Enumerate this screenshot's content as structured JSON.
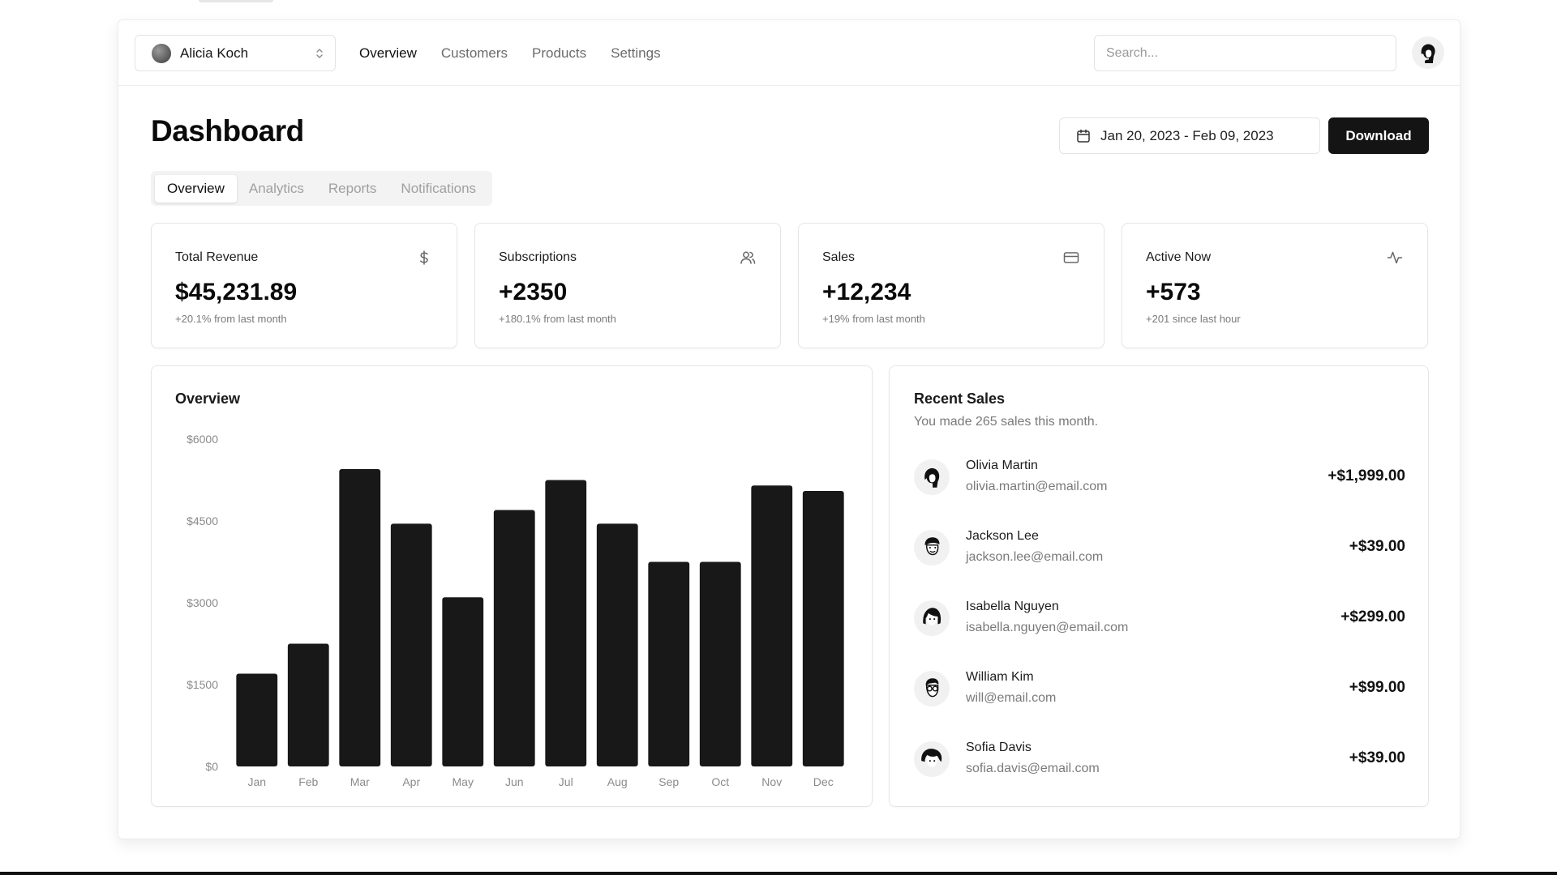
{
  "team_switcher": {
    "name": "Alicia Koch"
  },
  "nav": {
    "links": [
      "Overview",
      "Customers",
      "Products",
      "Settings"
    ],
    "active": "Overview"
  },
  "search": {
    "placeholder": "Search..."
  },
  "page": {
    "title": "Dashboard"
  },
  "date_range": {
    "label": "Jan 20, 2023 - Feb 09, 2023"
  },
  "download": {
    "label": "Download"
  },
  "tabs": [
    "Overview",
    "Analytics",
    "Reports",
    "Notifications"
  ],
  "stats": [
    {
      "title": "Total Revenue",
      "value": "$45,231.89",
      "sub": "+20.1% from last month",
      "icon": "dollar-icon"
    },
    {
      "title": "Subscriptions",
      "value": "+2350",
      "sub": "+180.1% from last month",
      "icon": "users-icon"
    },
    {
      "title": "Sales",
      "value": "+12,234",
      "sub": "+19% from last month",
      "icon": "credit-card-icon"
    },
    {
      "title": "Active Now",
      "value": "+573",
      "sub": "+201 since last hour",
      "icon": "activity-icon"
    }
  ],
  "overview": {
    "title": "Overview"
  },
  "chart_data": {
    "type": "bar",
    "categories": [
      "Jan",
      "Feb",
      "Mar",
      "Apr",
      "May",
      "Jun",
      "Jul",
      "Aug",
      "Sep",
      "Oct",
      "Nov",
      "Dec"
    ],
    "values": [
      1700,
      2250,
      5450,
      4450,
      3100,
      4700,
      5250,
      4450,
      3750,
      3750,
      5150,
      5050
    ],
    "y_ticks": [
      "$0",
      "$1500",
      "$3000",
      "$4500",
      "$6000"
    ],
    "ylim": [
      0,
      6000
    ],
    "bar_color": "#181818",
    "grid": false
  },
  "recent_sales": {
    "title": "Recent Sales",
    "subtitle": "You made 265 sales this month.",
    "items": [
      {
        "name": "Olivia Martin",
        "email": "olivia.martin@email.com",
        "amount": "+$1,999.00"
      },
      {
        "name": "Jackson Lee",
        "email": "jackson.lee@email.com",
        "amount": "+$39.00"
      },
      {
        "name": "Isabella Nguyen",
        "email": "isabella.nguyen@email.com",
        "amount": "+$299.00"
      },
      {
        "name": "William Kim",
        "email": "will@email.com",
        "amount": "+$99.00"
      },
      {
        "name": "Sofia Davis",
        "email": "sofia.davis@email.com",
        "amount": "+$39.00"
      }
    ]
  }
}
